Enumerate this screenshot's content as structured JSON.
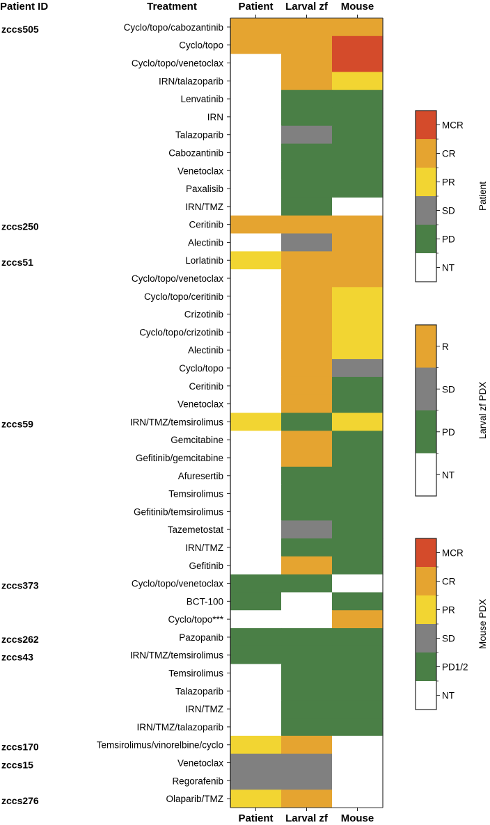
{
  "chart_data": {
    "type": "heatmap",
    "title": "",
    "headers": {
      "patient_id": "Patient ID",
      "treatment": "Treatment"
    },
    "columns": [
      "Patient",
      "Larval zf",
      "Mouse"
    ],
    "column_legend_keys": [
      "patient",
      "larval",
      "mouse"
    ],
    "rows": [
      {
        "patient_id": "zccs505",
        "treatment": "Cyclo/topo/cabozantinib",
        "values": [
          "CR",
          "R",
          "CR"
        ]
      },
      {
        "patient_id": "",
        "treatment": "Cyclo/topo",
        "values": [
          "CR",
          "R",
          "MCR"
        ]
      },
      {
        "patient_id": "",
        "treatment": "Cyclo/topo/venetoclax",
        "values": [
          "NT",
          "R",
          "MCR"
        ]
      },
      {
        "patient_id": "",
        "treatment": "IRN/talazoparib",
        "values": [
          "NT",
          "R",
          "PR"
        ]
      },
      {
        "patient_id": "",
        "treatment": "Lenvatinib",
        "values": [
          "NT",
          "PD",
          "PD1/2"
        ]
      },
      {
        "patient_id": "",
        "treatment": "IRN",
        "values": [
          "NT",
          "PD",
          "PD1/2"
        ]
      },
      {
        "patient_id": "",
        "treatment": "Talazoparib",
        "values": [
          "NT",
          "SD",
          "PD1/2"
        ]
      },
      {
        "patient_id": "",
        "treatment": "Cabozantinib",
        "values": [
          "NT",
          "PD",
          "PD1/2"
        ]
      },
      {
        "patient_id": "",
        "treatment": "Venetoclax",
        "values": [
          "NT",
          "PD",
          "PD1/2"
        ]
      },
      {
        "patient_id": "",
        "treatment": "Paxalisib",
        "values": [
          "NT",
          "PD",
          "PD1/2"
        ]
      },
      {
        "patient_id": "",
        "treatment": "IRN/TMZ",
        "values": [
          "NT",
          "PD",
          "NT"
        ]
      },
      {
        "patient_id": "zccs250",
        "treatment": "Ceritinib",
        "values": [
          "CR",
          "R",
          "CR"
        ]
      },
      {
        "patient_id": "",
        "treatment": "Alectinib",
        "values": [
          "NT",
          "SD",
          "CR"
        ]
      },
      {
        "patient_id": "zccs51",
        "treatment": "Lorlatinib",
        "values": [
          "PR",
          "R",
          "CR"
        ]
      },
      {
        "patient_id": "",
        "treatment": "Cyclo/topo/venetoclax",
        "values": [
          "NT",
          "R",
          "CR"
        ]
      },
      {
        "patient_id": "",
        "treatment": "Cyclo/topo/ceritinib",
        "values": [
          "NT",
          "R",
          "PR"
        ]
      },
      {
        "patient_id": "",
        "treatment": "Crizotinib",
        "values": [
          "NT",
          "R",
          "PR"
        ]
      },
      {
        "patient_id": "",
        "treatment": "Cyclo/topo/crizotinib",
        "values": [
          "NT",
          "R",
          "PR"
        ]
      },
      {
        "patient_id": "",
        "treatment": "Alectinib",
        "values": [
          "NT",
          "R",
          "PR"
        ]
      },
      {
        "patient_id": "",
        "treatment": "Cyclo/topo",
        "values": [
          "NT",
          "R",
          "SD"
        ]
      },
      {
        "patient_id": "",
        "treatment": "Ceritinib",
        "values": [
          "NT",
          "R",
          "PD1/2"
        ]
      },
      {
        "patient_id": "",
        "treatment": "Venetoclax",
        "values": [
          "NT",
          "R",
          "PD1/2"
        ]
      },
      {
        "patient_id": "zccs59",
        "treatment": "IRN/TMZ/temsirolimus",
        "values": [
          "PR",
          "PD",
          "PR"
        ]
      },
      {
        "patient_id": "",
        "treatment": "Gemcitabine",
        "values": [
          "NT",
          "R",
          "PD1/2"
        ]
      },
      {
        "patient_id": "",
        "treatment": "Gefitinib/gemcitabine",
        "values": [
          "NT",
          "R",
          "PD1/2"
        ]
      },
      {
        "patient_id": "",
        "treatment": "Afuresertib",
        "values": [
          "NT",
          "PD",
          "PD1/2"
        ]
      },
      {
        "patient_id": "",
        "treatment": "Temsirolimus",
        "values": [
          "NT",
          "PD",
          "PD1/2"
        ]
      },
      {
        "patient_id": "",
        "treatment": "Gefitinib/temsirolimus",
        "values": [
          "NT",
          "PD",
          "PD1/2"
        ]
      },
      {
        "patient_id": "",
        "treatment": "Tazemetostat",
        "values": [
          "NT",
          "SD",
          "PD1/2"
        ]
      },
      {
        "patient_id": "",
        "treatment": "IRN/TMZ",
        "values": [
          "NT",
          "PD",
          "PD1/2"
        ]
      },
      {
        "patient_id": "",
        "treatment": "Gefitinib",
        "values": [
          "NT",
          "R",
          "PD1/2"
        ]
      },
      {
        "patient_id": "zccs373",
        "treatment": "Cyclo/topo/venetoclax",
        "values": [
          "PD",
          "PD",
          "NT"
        ]
      },
      {
        "patient_id": "",
        "treatment": "BCT-100",
        "values": [
          "PD",
          "NT",
          "PD1/2"
        ]
      },
      {
        "patient_id": "",
        "treatment": "Cyclo/topo***",
        "values": [
          "NT",
          "NT",
          "CR"
        ]
      },
      {
        "patient_id": "zccs262",
        "treatment": "Pazopanib",
        "values": [
          "PD",
          "PD",
          "PD1/2"
        ]
      },
      {
        "patient_id": "zccs43",
        "treatment": "IRN/TMZ/temsirolimus",
        "values": [
          "PD",
          "PD",
          "PD1/2"
        ]
      },
      {
        "patient_id": "",
        "treatment": "Temsirolimus",
        "values": [
          "NT",
          "PD",
          "PD1/2"
        ]
      },
      {
        "patient_id": "",
        "treatment": "Talazoparib",
        "values": [
          "NT",
          "PD",
          "PD1/2"
        ]
      },
      {
        "patient_id": "",
        "treatment": "IRN/TMZ",
        "values": [
          "NT",
          "PD",
          "PD1/2"
        ]
      },
      {
        "patient_id": "",
        "treatment": "IRN/TMZ/talazoparib",
        "values": [
          "NT",
          "PD",
          "PD1/2"
        ]
      },
      {
        "patient_id": "zccs170",
        "treatment": "Temsirolimus/vinorelbine/cyclo",
        "values": [
          "PR",
          "R",
          "NT"
        ]
      },
      {
        "patient_id": "zccs15",
        "treatment": "Venetoclax",
        "values": [
          "SD",
          "SD",
          "NT"
        ]
      },
      {
        "patient_id": "",
        "treatment": "Regorafenib",
        "values": [
          "SD",
          "SD",
          "NT"
        ]
      },
      {
        "patient_id": "zccs276",
        "treatment": "Olaparib/TMZ",
        "values": [
          "PR",
          "R",
          "NT"
        ]
      }
    ],
    "legends": {
      "patient": {
        "title": "Patient",
        "items": [
          {
            "label": "MCR",
            "color": "#D44B2B"
          },
          {
            "label": "CR",
            "color": "#E5A430"
          },
          {
            "label": "PR",
            "color": "#F2D532"
          },
          {
            "label": "SD",
            "color": "#808080"
          },
          {
            "label": "PD",
            "color": "#4A7F46"
          },
          {
            "label": "NT",
            "color": "#FFFFFF"
          }
        ]
      },
      "larval": {
        "title": "Larval zf PDX",
        "items": [
          {
            "label": "R",
            "color": "#E5A430"
          },
          {
            "label": "SD",
            "color": "#808080"
          },
          {
            "label": "PD",
            "color": "#4A7F46"
          },
          {
            "label": "NT",
            "color": "#FFFFFF"
          }
        ]
      },
      "mouse": {
        "title": "Mouse PDX",
        "items": [
          {
            "label": "MCR",
            "color": "#D44B2B"
          },
          {
            "label": "CR",
            "color": "#E5A430"
          },
          {
            "label": "PR",
            "color": "#F2D532"
          },
          {
            "label": "SD",
            "color": "#808080"
          },
          {
            "label": "PD1/2",
            "color": "#4A7F46"
          },
          {
            "label": "NT",
            "color": "#FFFFFF"
          }
        ]
      }
    },
    "legend_placement": "right"
  }
}
